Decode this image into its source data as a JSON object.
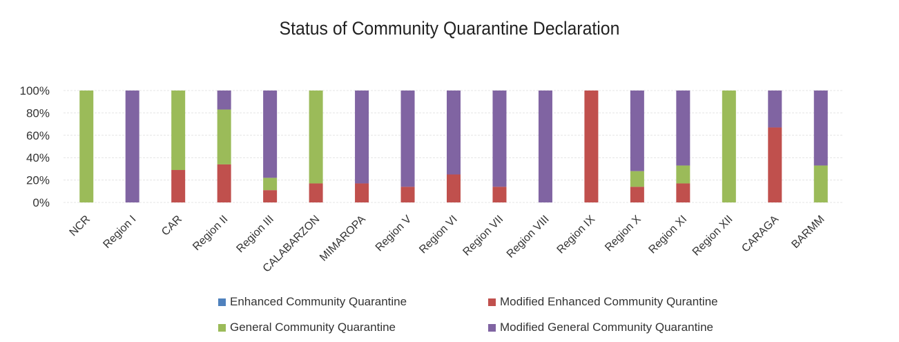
{
  "chart_data": {
    "type": "bar",
    "stacked": true,
    "normalized": true,
    "title": "Status of Community Quarantine Declaration",
    "xlabel": "",
    "ylabel": "",
    "ylim": [
      0,
      100
    ],
    "yticks": [
      "0%",
      "20%",
      "40%",
      "60%",
      "80%",
      "100%"
    ],
    "grid": true,
    "legend_position": "bottom",
    "categories": [
      "NCR",
      "Region I",
      "CAR",
      "Region II",
      "Region III",
      "CALABARZON",
      "MIMAROPA",
      "Region V",
      "Region VI",
      "Region VII",
      "Region VIII",
      "Region IX",
      "Region X",
      "Region XI",
      "Region XII",
      "CARAGA",
      "BARMM"
    ],
    "series": [
      {
        "name": "Enhanced Community Quarantine",
        "color": "#4f81bd",
        "values": [
          0,
          0,
          0,
          0,
          0,
          0,
          0,
          0,
          0,
          0,
          0,
          0,
          0,
          0,
          0,
          0,
          0
        ]
      },
      {
        "name": "Modified Enhanced Community Qurantine",
        "color": "#c0504d",
        "values": [
          0,
          0,
          29,
          34,
          11,
          17,
          17,
          14,
          25,
          14,
          0,
          100,
          14,
          17,
          0,
          67,
          0
        ]
      },
      {
        "name": "General Community Quarantine",
        "color": "#9bbb59",
        "values": [
          100,
          0,
          71,
          49,
          11,
          83,
          0,
          0,
          0,
          0,
          0,
          0,
          14,
          16,
          100,
          0,
          33
        ]
      },
      {
        "name": "Modified General Community Quarantine",
        "color": "#8064a2",
        "values": [
          0,
          100,
          0,
          17,
          78,
          0,
          83,
          86,
          75,
          86,
          100,
          0,
          72,
          67,
          0,
          33,
          67
        ]
      }
    ]
  }
}
